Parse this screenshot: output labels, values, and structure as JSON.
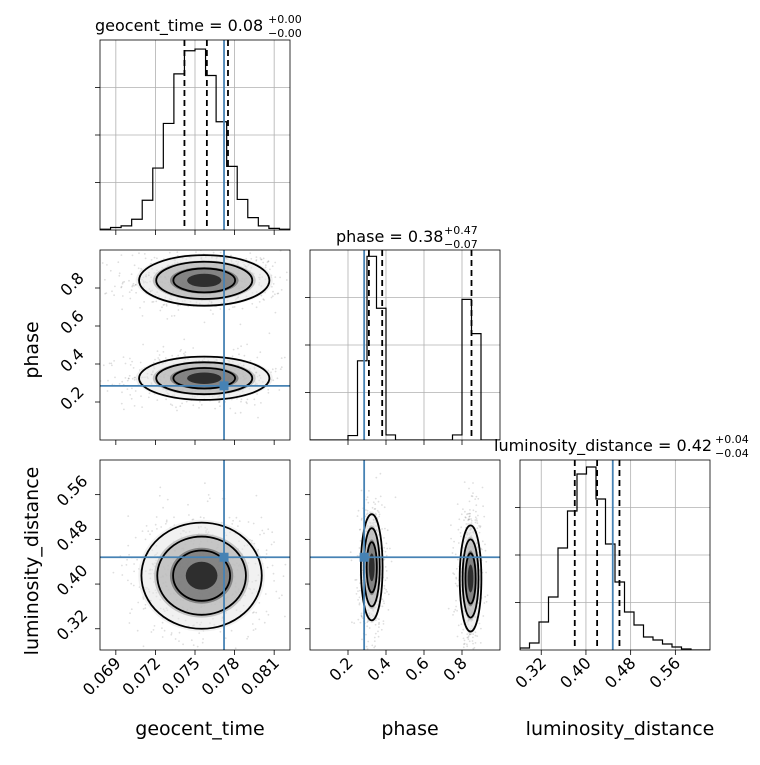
{
  "colors": {
    "truth": "#4682b4",
    "contour": "#000000",
    "grid": "#b0b0b0",
    "density_fills": [
      "#e6e6e6",
      "#b5b5b5",
      "#6e6e6e",
      "#111111"
    ]
  },
  "chart_data": {
    "type": "corner",
    "parameters": [
      "geocent_time",
      "phase",
      "luminosity_distance"
    ],
    "truths": {
      "geocent_time": 0.0772,
      "phase": 0.285,
      "luminosity_distance": 0.448
    },
    "titles": [
      {
        "param": "geocent_time",
        "text": "geocent_time = 0.08",
        "sup": "+0.00",
        "sub": "−0.00"
      },
      {
        "param": "phase",
        "text": "phase = 0.38",
        "sup": "+0.47",
        "sub": "−0.07"
      },
      {
        "param": "luminosity_distance",
        "text": "luminosity_distance = 0.42",
        "sup": "+0.04",
        "sub": "−0.04"
      }
    ],
    "axes": {
      "geocent_time": {
        "label": "geocent_time",
        "range": [
          0.0678,
          0.0822
        ],
        "ticks": [
          0.069,
          0.072,
          0.075,
          0.078,
          0.081
        ],
        "tick_labels": [
          "0.069",
          "0.072",
          "0.075",
          "0.078",
          "0.081"
        ]
      },
      "phase": {
        "label": "phase",
        "range": [
          0.0,
          1.0
        ],
        "ticks": [
          0.2,
          0.4,
          0.6,
          0.8
        ],
        "tick_labels": [
          "0.2",
          "0.4",
          "0.6",
          "0.8"
        ]
      },
      "luminosity_distance": {
        "label": "luminosity_distance",
        "range": [
          0.282,
          0.622
        ],
        "ticks": [
          0.32,
          0.4,
          0.48,
          0.56
        ],
        "tick_labels": [
          "0.32",
          "0.40",
          "0.48",
          "0.56"
        ]
      }
    },
    "histograms": [
      {
        "param": "geocent_time",
        "bins": [
          0.0678,
          0.0686,
          0.0694,
          0.0702,
          0.071,
          0.0718,
          0.0726,
          0.0734,
          0.0742,
          0.075,
          0.0758,
          0.0766,
          0.0774,
          0.0782,
          0.079,
          0.0798,
          0.0806,
          0.0814,
          0.0822
        ],
        "counts": [
          1,
          3,
          5,
          13,
          36,
          75,
          129,
          189,
          217,
          219,
          187,
          131,
          77,
          37,
          15,
          5,
          2,
          1
        ],
        "ymax": 230,
        "quantiles": [
          0.0742,
          0.0759,
          0.0775
        ]
      },
      {
        "param": "phase",
        "bins": [
          0.0,
          0.05,
          0.1,
          0.15,
          0.2,
          0.25,
          0.3,
          0.35,
          0.4,
          0.45,
          0.5,
          0.55,
          0.6,
          0.65,
          0.7,
          0.75,
          0.8,
          0.85,
          0.9,
          0.95,
          1.0
        ],
        "counts": [
          0,
          0,
          0,
          0,
          7,
          125,
          290,
          208,
          8,
          0,
          0,
          0,
          0,
          0,
          0,
          8,
          222,
          168,
          0,
          0
        ],
        "ymax": 300,
        "quantiles": [
          0.31,
          0.38,
          0.85
        ]
      },
      {
        "param": "luminosity_distance",
        "bins": [
          0.282,
          0.299,
          0.316,
          0.333,
          0.35,
          0.367,
          0.384,
          0.401,
          0.418,
          0.435,
          0.452,
          0.469,
          0.486,
          0.503,
          0.52,
          0.537,
          0.554,
          0.571,
          0.588,
          0.605,
          0.622
        ],
        "counts": [
          2,
          7,
          28,
          53,
          102,
          139,
          176,
          183,
          151,
          106,
          68,
          38,
          25,
          13,
          10,
          6,
          3,
          1,
          0,
          0
        ],
        "ymax": 190,
        "quantiles": [
          0.38,
          0.42,
          0.46
        ]
      }
    ],
    "pair_panels": [
      {
        "x": "geocent_time",
        "y": "phase",
        "modes": [
          {
            "x": 0.0757,
            "y": 0.84,
            "sx": 0.0026,
            "sy": 0.07
          },
          {
            "x": 0.0757,
            "y": 0.325,
            "sx": 0.0026,
            "sy": 0.06
          }
        ]
      },
      {
        "x": "geocent_time",
        "y": "luminosity_distance",
        "modes": [
          {
            "x": 0.0755,
            "y": 0.415,
            "sx": 0.0024,
            "sy": 0.05
          }
        ]
      },
      {
        "x": "phase",
        "y": "luminosity_distance",
        "modes": [
          {
            "x": 0.325,
            "y": 0.43,
            "sx": 0.03,
            "sy": 0.05
          },
          {
            "x": 0.845,
            "y": 0.41,
            "sx": 0.03,
            "sy": 0.05
          }
        ]
      }
    ]
  }
}
